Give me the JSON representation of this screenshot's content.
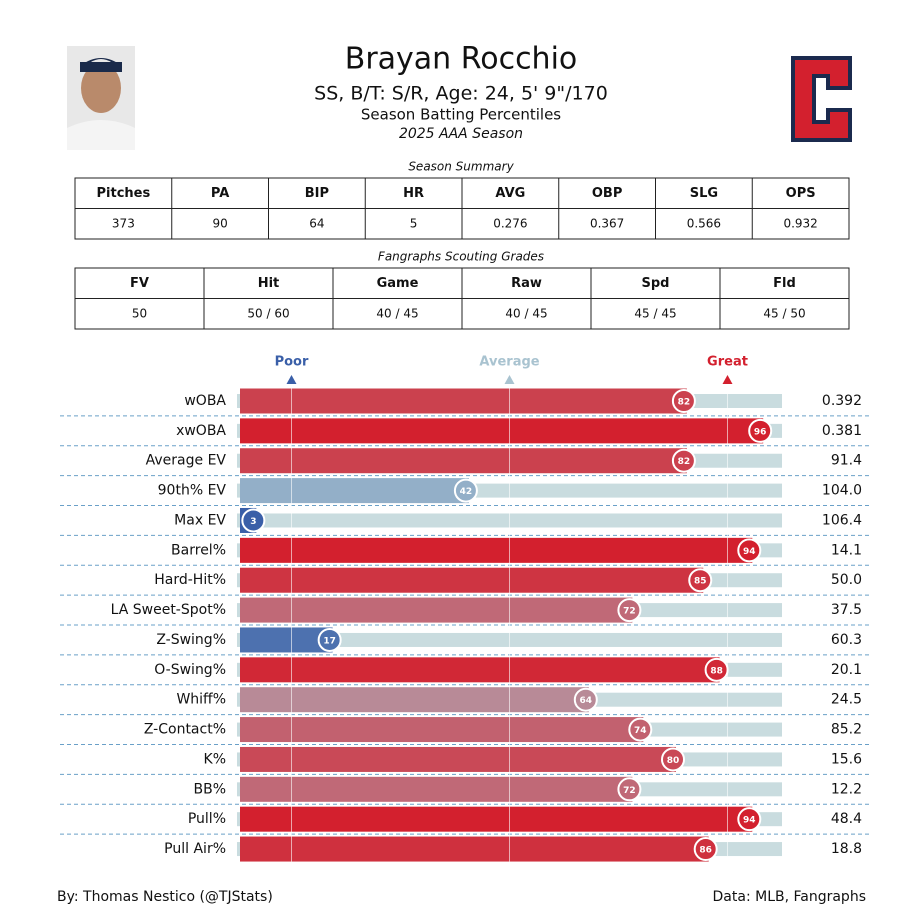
{
  "header": {
    "name": "Brayan Rocchio",
    "subtitle": "SS, B/T: S/R, Age: 24, 5' 9\"/170",
    "title": "Season Batting Percentiles",
    "season": "2025 AAA Season"
  },
  "summary": {
    "title": "Season Summary",
    "columns": [
      "Pitches",
      "PA",
      "BIP",
      "HR",
      "AVG",
      "OBP",
      "SLG",
      "OPS"
    ],
    "rows": [
      [
        "373",
        "90",
        "64",
        "5",
        "0.276",
        "0.367",
        "0.566",
        "0.932"
      ]
    ]
  },
  "grades": {
    "title": "Fangraphs Scouting Grades",
    "columns": [
      "FV",
      "Hit",
      "Game",
      "Raw",
      "Spd",
      "Fld"
    ],
    "rows": [
      [
        "50",
        "50 / 60",
        "40 / 45",
        "40 / 45",
        "45 / 45",
        "45 / 50"
      ]
    ]
  },
  "chart_data": {
    "type": "bar",
    "orientation": "horizontal",
    "categories": [
      "wOBA",
      "xwOBA",
      "Average EV",
      "90th% EV",
      "Max EV",
      "Barrel%",
      "Hard-Hit%",
      "LA Sweet-Spot%",
      "Z-Swing%",
      "O-Swing%",
      "Whiff%",
      "Z-Contact%",
      "K%",
      "BB%",
      "Pull%",
      "Pull Air%"
    ],
    "values": [
      82,
      96,
      82,
      42,
      3,
      94,
      85,
      72,
      17,
      88,
      64,
      74,
      80,
      72,
      94,
      86
    ],
    "stats": [
      "0.392",
      "0.381",
      "91.4",
      "104.0",
      "106.4",
      "14.1",
      "50.0",
      "37.5",
      "60.3",
      "20.1",
      "24.5",
      "85.2",
      "15.6",
      "12.2",
      "48.4",
      "18.8"
    ],
    "xlim": [
      0,
      100
    ],
    "markers": [
      {
        "label": "Poor",
        "value": 10,
        "color": "#3a5fa8"
      },
      {
        "label": "Average",
        "value": 50,
        "color": "#a9c3d0"
      },
      {
        "label": "Great",
        "value": 90,
        "color": "#d3202e"
      }
    ],
    "track_color": "#c9dcdf"
  },
  "footer": {
    "credit": "By: Thomas Nestico (@TJStats)",
    "source": "Data: MLB, Fangraphs"
  }
}
